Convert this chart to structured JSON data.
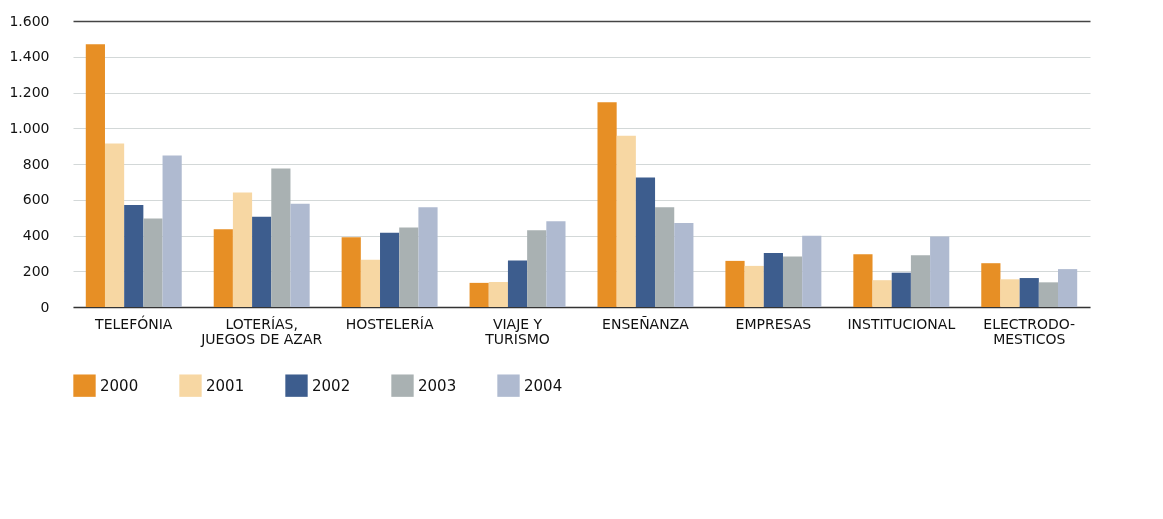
{
  "chart_data": {
    "type": "bar",
    "categories": [
      "TELEFÓNIA",
      "LOTERÍAS,\nJUEGOS DE AZAR",
      "HOSTELERÍA",
      "VIAJE Y\nTURISMO",
      "ENSEÑANZA",
      "EMPRESAS",
      "INSTITUCIONAL",
      "ELECTRODO-\nMESTICOS"
    ],
    "series": [
      {
        "name": "2000",
        "color": "#e78f25",
        "values": [
          1470,
          435,
          390,
          135,
          1145,
          258,
          295,
          245
        ]
      },
      {
        "name": "2001",
        "color": "#f7d7a3",
        "values": [
          915,
          640,
          265,
          140,
          958,
          230,
          150,
          155
        ]
      },
      {
        "name": "2002",
        "color": "#3d5d8e",
        "values": [
          570,
          505,
          415,
          260,
          725,
          302,
          192,
          162
        ]
      },
      {
        "name": "2003",
        "color": "#a9b1b2",
        "values": [
          495,
          775,
          445,
          430,
          558,
          282,
          290,
          138
        ]
      },
      {
        "name": "2004",
        "color": "#afbad0",
        "values": [
          848,
          578,
          558,
          480,
          470,
          398,
          395,
          212
        ]
      }
    ],
    "ylim": [
      0,
      1600
    ],
    "yticks": [
      0,
      200,
      400,
      600,
      800,
      {
        "value": 1000,
        "label": "1.000"
      },
      {
        "value": 1200,
        "label": "1.200"
      },
      {
        "value": 1400,
        "label": "1.400"
      },
      {
        "value": 1600,
        "label": "1.600"
      }
    ],
    "grid": "y",
    "legend": "bottom"
  }
}
